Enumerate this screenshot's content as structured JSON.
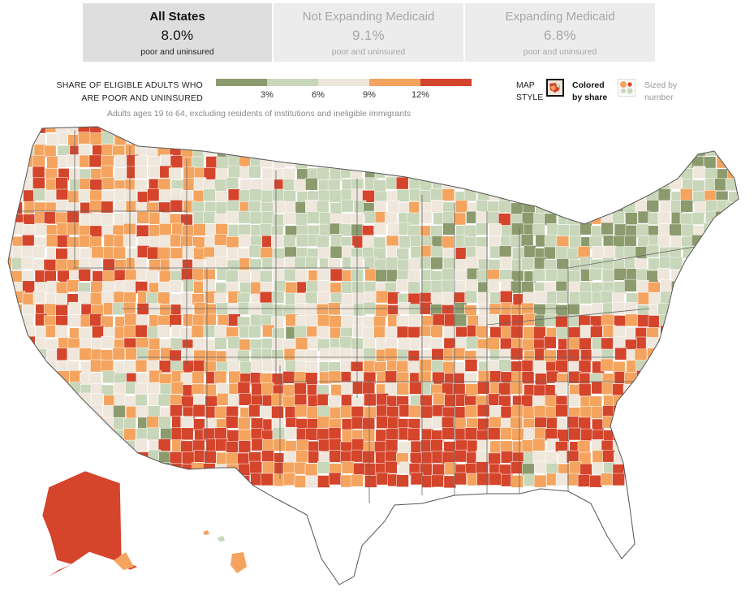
{
  "tabs": [
    {
      "title": "All States",
      "value": "8.0%",
      "sub": "poor and uninsured",
      "active": true
    },
    {
      "title": "Not Expanding Medicaid",
      "value": "9.1%",
      "sub": "poor and uninsured",
      "active": false
    },
    {
      "title": "Expanding Medicaid",
      "value": "6.8%",
      "sub": "poor and uninsured",
      "active": false
    }
  ],
  "legend": {
    "title_line1": "SHARE OF ELIGIBLE ADULTS WHO",
    "title_line2": "ARE POOR AND UNINSURED",
    "ticks": [
      "3%",
      "6%",
      "9%",
      "12%"
    ],
    "colors": [
      "#8c9b6e",
      "#c8d6b9",
      "#efe7dc",
      "#f4a45f",
      "#d4452b"
    ],
    "note": "Adults ages 19 to 64, excluding residents of institutions and ineligible immigrants"
  },
  "map_style": {
    "label_line1": "MAP",
    "label_line2": "STYLE",
    "option_share_line1": "Colored",
    "option_share_line2": "by share",
    "option_number_line1": "Sized by",
    "option_number_line2": "number"
  },
  "map": {
    "region": "United States counties",
    "share_brackets": [
      "under 3%",
      "3% to 6%",
      "6% to 9%",
      "9% to 12%",
      "12% or more"
    ]
  }
}
